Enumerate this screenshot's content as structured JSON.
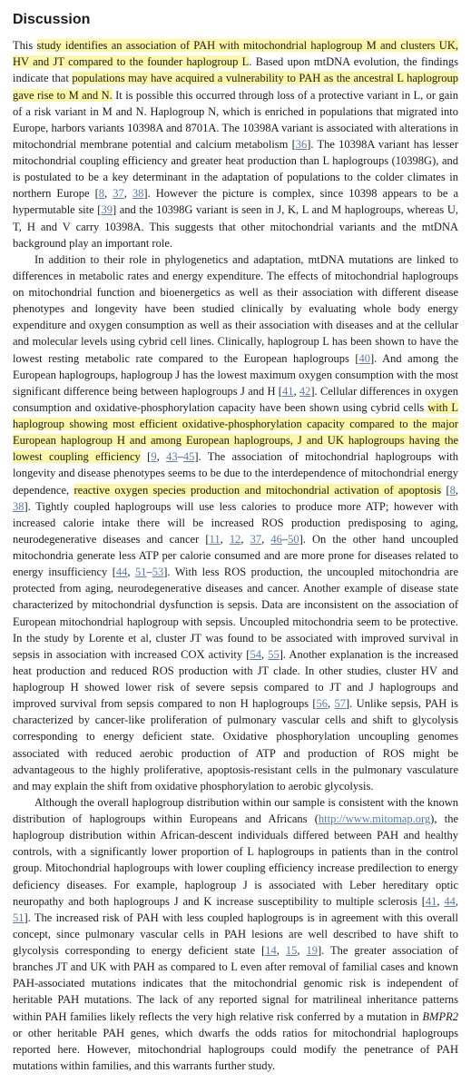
{
  "heading": "Discussion",
  "p1": {
    "t1": "This ",
    "h1": "study identifies an association of PAH with mitochondrial haplogroup M and clusters UK, HV and JT compared to the founder haplogroup L",
    "t2": ". Based upon mtDNA evolution, the findings indicate that ",
    "h2": "populations may have acquired a vulnerability to PAH as the ancestral L haplogroup gave rise to M and N.",
    "t3": " It is possible this occurred through loss of a protective variant in L, or gain of a risk variant in M and N. Haplogroup N, which is enriched in populations that migrated into Europe, harbors variants 10398A and 8701A. The 10398A variant is associated with alterations in mitochondrial membrane potential and calcium metabolism [",
    "r1": "36",
    "t4": "]. The 10398A variant has lesser mitochondrial coupling efficiency and greater heat production than L haplogroups (10398G), and is postulated to be a key determinant in the adaptation of populations to the colder climates in northern Europe [",
    "r2": "8",
    "r3": "37",
    "r4": "38",
    "t5": "]. However the picture is complex, since 10398 appears to be a hypermutable site [",
    "r5": "39",
    "t6": "] and the 10398G variant is seen in J, K, L and M haplogroups, whereas U, T, H and V carry 10398A. This suggests that other mitochondrial variants and the mtDNA background play an important role."
  },
  "p2": {
    "t1": "In addition to their role in phylogenetics and adaptation, mtDNA mutations are linked to differences in metabolic rates and energy expenditure. The effects of mitochondrial haplogroups on mitochondrial function and bioenergetics as well as their association with different disease phenotypes and longevity have been studied clinically by evaluating whole body energy expenditure and oxygen consumption as well as their association with diseases and at the cellular and molecular levels using cybrid cell lines. Clinically, haplogroup L has been shown to have the lowest resting metabolic rate compared to the European haplogroups [",
    "r1": "40",
    "t2": "]. And among the European haplogroups, haplogroup J has the lowest maximum oxygen consumption with the most significant difference being between haplogroups J and H [",
    "r2": "41",
    "r3": "42",
    "t3": "]. Cellular differences in oxygen consumption and oxidative-phosphorylation capacity have been shown using cybrid cells ",
    "h1": "with L haplogroup showing most efficient oxidative-phosphorylation capacity compared to the major European haplogroup H and among European haplogroups, J and UK haplogroups having the lowest coupling efficiency",
    "t4": " [",
    "r4": "9",
    "r5": "43",
    "r6": "45",
    "t5": "]. The association of mitochondrial haplogroups with longevity and disease phenotypes seems to be due to the interdependence of mitochondrial energy dependence, ",
    "h2": "reactive oxygen species production and mitochondrial activation of apoptosis",
    "t6": " [",
    "r7": "8",
    "r8": "38",
    "t7": "]. Tightly coupled haplogroups will use less calories to produce more ATP; however with increased calorie intake there will be increased ROS production predisposing to aging, neurodegenerative diseases and cancer [",
    "r9": "11",
    "r10": "12",
    "r11": "37",
    "r12": "46",
    "r13": "50",
    "t8": "]. On the other hand uncoupled mitochondria generate less ATP per calorie consumed and are more prone for diseases related to energy insufficiency [",
    "r14": "44",
    "r15": "51",
    "r16": "53",
    "t9": "]. With less ROS production, the uncoupled mitochondria are protected from aging, neurodegenerative diseases and cancer. Another example of disease state characterized by mitochondrial dysfunction is sepsis. Data are inconsistent on the association of European mitochondrial haplogroup with sepsis. Uncoupled mitochondria seem to be protective. In the study by Lorente et al, cluster JT was found to be associated with improved survival in sepsis in association with increased COX activity [",
    "r17": "54",
    "r18": "55",
    "t10": "]. Another explanation is the increased heat production and reduced ROS production with JT clade. In other studies, cluster HV and haplogroup H showed lower risk of severe sepsis compared to JT and J haplogroups and improved survival from sepsis compared to non H haplogroups [",
    "r19": "56",
    "r20": "57",
    "t11": "]. Unlike sepsis, PAH is characterized by cancer-like proliferation of pulmonary vascular cells and shift to glycolysis corresponding to energy deficient state. Oxidative phosphorylation uncoupling genomes associated with reduced aerobic production of ATP and production of ROS might be advantageous to the highly proliferative, apoptosis-resistant cells in the pulmonary vasculature and may explain the shift from oxidative phosphorylation to aerobic glycolysis."
  },
  "p3": {
    "t1": "Although the overall haplogroup distribution within our sample is consistent with the known distribution of haplogroups within Europeans and Africans (",
    "link": "http://www.mitomap.org",
    "t2": "), the haplogroup distribution within African-descent individuals differed between PAH and healthy controls, with a significantly lower proportion of L haplogroups in patients than in the control group. Mitochondrial haplogroups with lower coupling efficiency increase predilection to energy deficiency diseases. For example, haplogroup J is associated with Leber hereditary optic neuropathy and both haplogroups J and K increase susceptibility to multiple sclerosis [",
    "r1": "41",
    "r2": "44",
    "r3": "51",
    "t3": "]. The increased risk of PAH with less coupled haplogroups is in agreement with this overall concept, since pulmonary vascular cells in PAH lesions are well described to have shift to glycolysis corresponding to energy deficient state [",
    "r4": "14",
    "r5": "15",
    "r6": "19",
    "t4": "]. The greater association of branches JT and UK with PAH as compared to L even after removal of familial cases and known PAH-associated mutations indicates that the mitochondrial genomic risk is independent of heritable PAH mutations. The lack of any reported signal for matrilineal inheritance patterns within PAH families likely reflects the very high relative risk conferred by a mutation in ",
    "em1": "BMPR2",
    "t5": " or other heritable PAH genes, which dwarfs the odds ratios for mitochondrial haplogroups reported here. However, mitochondrial haplogroups could modify the penetrance of PAH mutations within families, and this warrants further study."
  }
}
